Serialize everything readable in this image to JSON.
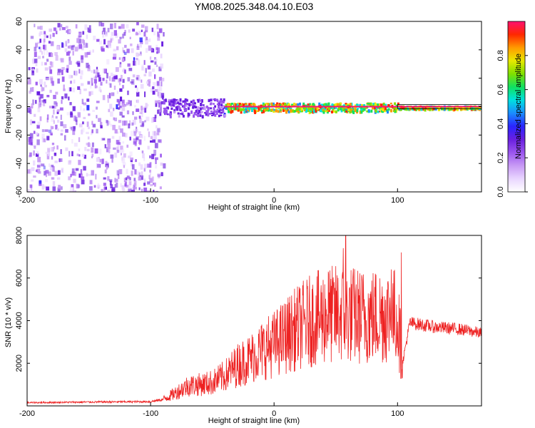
{
  "figure_title": "YM08.2025.348.04.10.E03",
  "colors": {
    "spectral_scale": [
      "#ffffff",
      "#e9d6ff",
      "#c89af5",
      "#9a55ee",
      "#6a1fe0",
      "#2a25ff",
      "#1a8cff",
      "#00e0e0",
      "#10e060",
      "#80e000",
      "#e8e800",
      "#ff9a00",
      "#ff2800",
      "#ff1070"
    ],
    "snr_line": "#ee2222",
    "center_line": "#000000"
  },
  "chart_data": [
    {
      "name": "spectrogram",
      "type": "heatmap",
      "xlabel": "Height of straight line (km)",
      "ylabel": "Frequency (Hz)",
      "xlim": [
        -200,
        168
      ],
      "ylim": [
        -60,
        60
      ],
      "x_ticks": [
        -200,
        -100,
        0,
        100
      ],
      "y_ticks": [
        60,
        40,
        20,
        0,
        -20,
        -40,
        -60
      ],
      "colorbar": {
        "label": "Normalized spectral amplitude",
        "range": [
          0.0,
          1.0
        ],
        "ticks": [
          0.0,
          0.2,
          0.4,
          0.6,
          0.8
        ]
      },
      "regions": [
        {
          "x_range": [
            -200,
            -90
          ],
          "description_level": "noise",
          "amplitude": 0.1
        },
        {
          "x_range": [
            -90,
            -40
          ],
          "freq_center": 0,
          "freq_spread": 6,
          "amplitude": 0.35
        },
        {
          "x_range": [
            -40,
            100
          ],
          "freq_center": 0,
          "freq_spread": 3,
          "amplitude": 0.95
        },
        {
          "x_range": [
            100,
            168
          ],
          "freq_center": 0,
          "freq_spread": 1,
          "amplitude": 0.95
        }
      ]
    },
    {
      "name": "snr",
      "type": "line",
      "xlabel": "Height of straight line (km)",
      "ylabel": "SNR (10 * v/v)",
      "xlim": [
        -200,
        168
      ],
      "ylim": [
        0,
        8000
      ],
      "x_ticks": [
        -200,
        -100,
        0,
        100
      ],
      "y_ticks": [
        8000,
        6000,
        4000,
        2000
      ],
      "envelope": {
        "x": [
          -200,
          -150,
          -100,
          -90,
          -80,
          -70,
          -60,
          -50,
          -40,
          -30,
          -20,
          -10,
          0,
          10,
          20,
          30,
          40,
          50,
          60,
          70,
          80,
          90,
          100,
          104,
          110,
          120,
          130,
          140,
          150,
          160,
          168
        ],
        "y": [
          150,
          180,
          200,
          300,
          600,
          950,
          1000,
          1100,
          1400,
          1900,
          2200,
          2600,
          2900,
          3300,
          3700,
          4000,
          4200,
          4300,
          4300,
          4200,
          4200,
          4300,
          4200,
          2000,
          3900,
          3800,
          3700,
          3650,
          3600,
          3500,
          3400
        ]
      },
      "peaks": [
        {
          "x": 58,
          "y": 8000
        },
        {
          "x": 56,
          "y": 7400
        },
        {
          "x": 103,
          "y": 7200
        },
        {
          "x": 95,
          "y": 6400
        },
        {
          "x": 44,
          "y": 6300
        }
      ]
    }
  ]
}
